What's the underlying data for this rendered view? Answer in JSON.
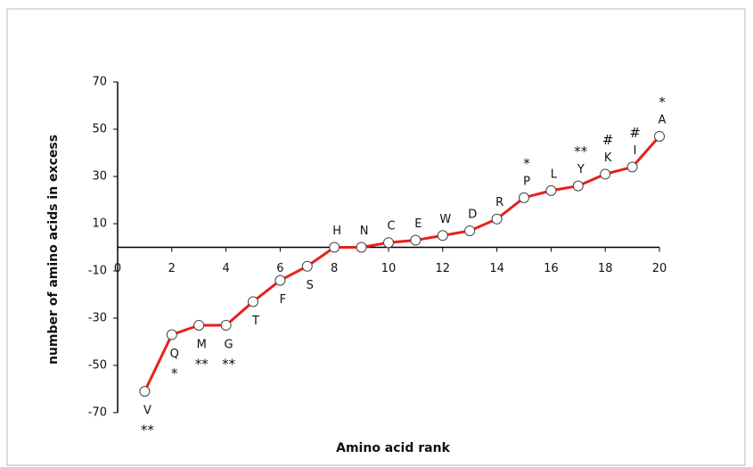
{
  "chart_data": {
    "type": "line",
    "x_label": "Amino acid rank",
    "y_label": "number of amino acids in excess",
    "x": [
      1,
      2,
      3,
      4,
      5,
      6,
      7,
      8,
      9,
      10,
      11,
      12,
      13,
      14,
      15,
      16,
      17,
      18,
      19,
      20
    ],
    "series": [
      {
        "color": "#e8201a",
        "values": [
          -61,
          -37,
          -33,
          -33,
          -23,
          -14,
          -8,
          0,
          0,
          2,
          3,
          5,
          7,
          12,
          21,
          24,
          26,
          31,
          34,
          47
        ]
      }
    ],
    "point_labels": [
      "V",
      "Q",
      "M",
      "G",
      "T",
      "F",
      "S",
      "H",
      "N",
      "C",
      "E",
      "W",
      "D",
      "R",
      "P",
      "L",
      "Y",
      "K",
      "I",
      "A"
    ],
    "annotations": [
      "**",
      "*",
      "**",
      "**",
      null,
      null,
      null,
      null,
      null,
      null,
      null,
      null,
      null,
      null,
      "*",
      null,
      "**",
      "#",
      "#",
      "*"
    ],
    "xlim": [
      0,
      20
    ],
    "xticks": [
      0,
      2,
      4,
      6,
      8,
      10,
      12,
      14,
      16,
      18,
      20
    ],
    "ylim": [
      -70,
      70
    ],
    "yticks": [
      -70,
      -50,
      -30,
      -10,
      10,
      30,
      50,
      70
    ]
  }
}
